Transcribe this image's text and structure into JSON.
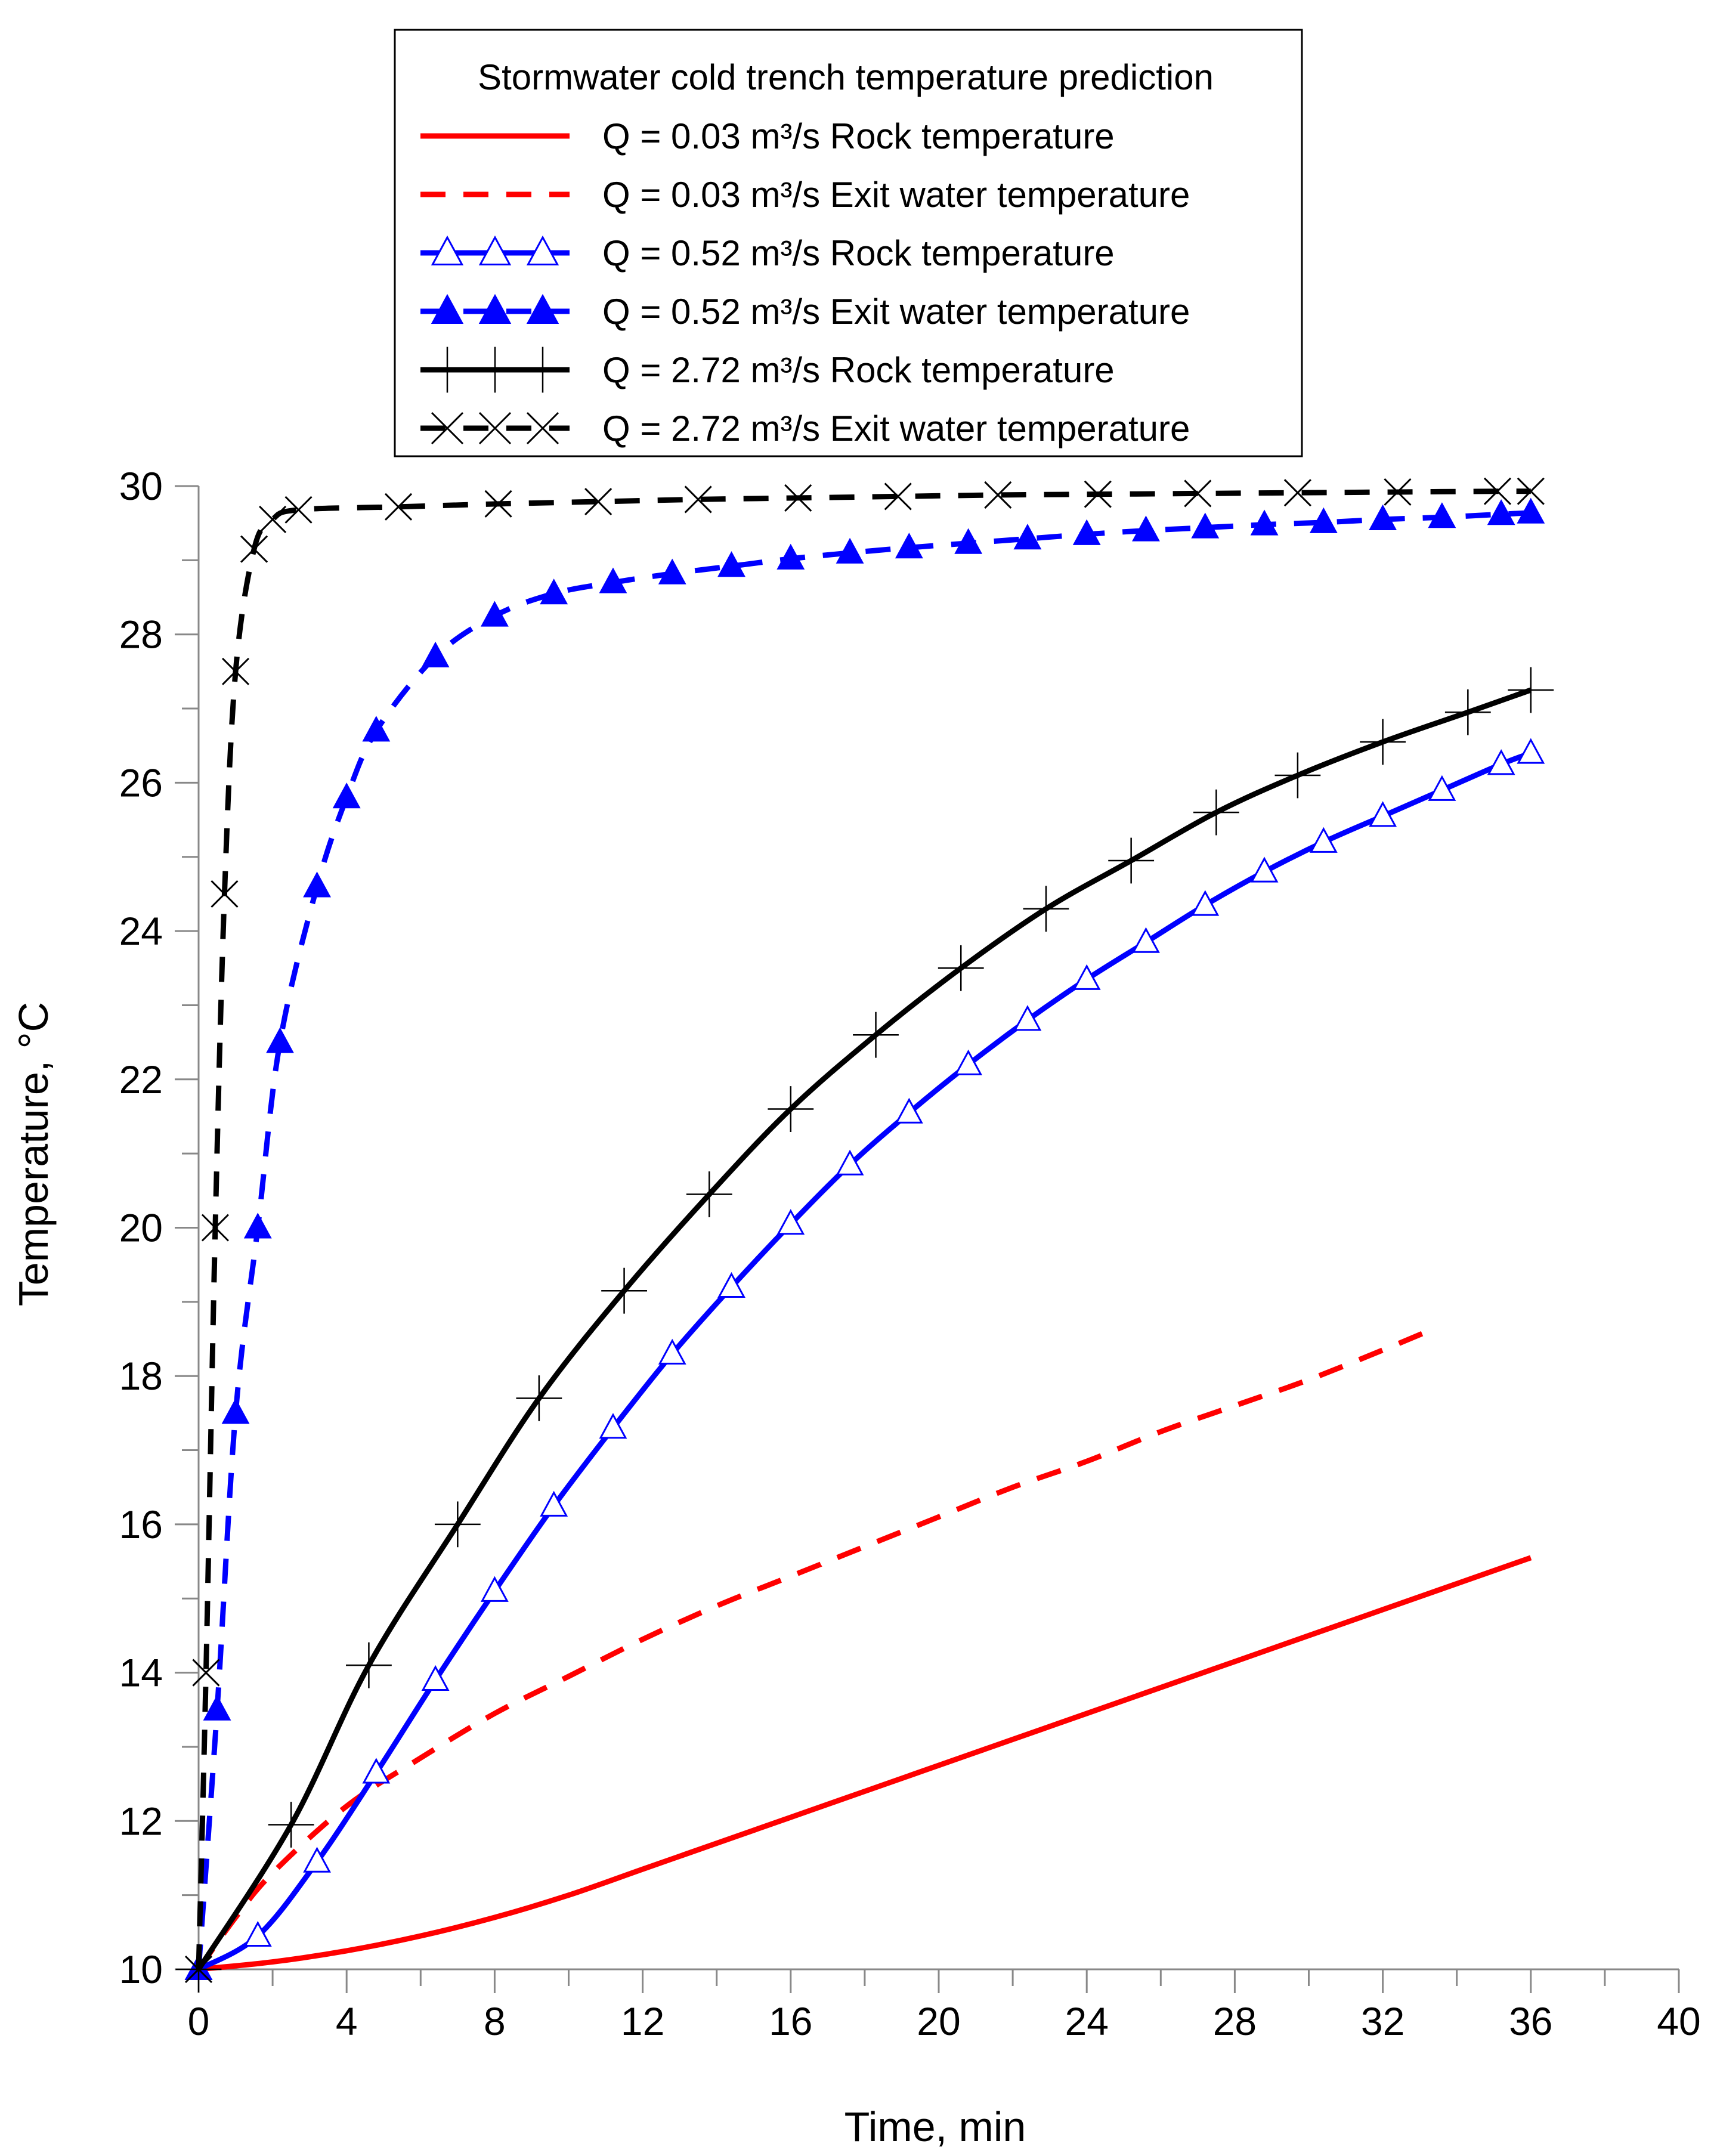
{
  "chart_data": {
    "type": "line",
    "title": "Stormwater cold trench temperature prediction",
    "xlabel": "Time, min",
    "ylabel": "Temperature, °C",
    "xlim": [
      0,
      40
    ],
    "ylim": [
      10,
      30
    ],
    "xticks": [
      "0",
      "4",
      "8",
      "12",
      "16",
      "20",
      "24",
      "28",
      "32",
      "36",
      "40"
    ],
    "yticks": [
      "10",
      "12",
      "14",
      "16",
      "18",
      "20",
      "22",
      "24",
      "26",
      "28",
      "30"
    ],
    "legend_position": "top",
    "series": [
      {
        "name": "Q = 0.03 m³/s Rock temperature",
        "color": "#ff0000",
        "dash": "solid",
        "marker": "none",
        "x": [
          0,
          2,
          4,
          6,
          8,
          10,
          12,
          14,
          16,
          18,
          20,
          22,
          24,
          26,
          28,
          30,
          32,
          34,
          36
        ],
        "y": [
          10.0,
          10.1,
          10.25,
          10.45,
          10.7,
          11.0,
          11.35,
          11.7,
          12.05,
          12.4,
          12.75,
          13.1,
          13.45,
          13.8,
          14.15,
          14.5,
          14.85,
          15.2,
          15.55
        ]
      },
      {
        "name": "Q = 0.03 m³/s Exit water temperature",
        "color": "#ff0000",
        "dash": "dashed",
        "marker": "none",
        "x": [
          0,
          1,
          2,
          4,
          6,
          8,
          10,
          12,
          14,
          16,
          18,
          20,
          22,
          24,
          26,
          28,
          30,
          32,
          33.2
        ],
        "y": [
          10.0,
          10.7,
          11.3,
          12.2,
          12.85,
          13.45,
          13.95,
          14.45,
          14.9,
          15.3,
          15.7,
          16.1,
          16.5,
          16.85,
          17.25,
          17.6,
          17.95,
          18.35,
          18.6
        ]
      },
      {
        "name": "Q = 0.52 m³/s Rock temperature",
        "color": "#0000ff",
        "dash": "solid",
        "marker": "triangle-open",
        "x": [
          0,
          1.6,
          3.2,
          4.8,
          6.4,
          8,
          9.6,
          11.2,
          12.8,
          14.4,
          16,
          17.6,
          19.2,
          20.8,
          22.4,
          24,
          25.6,
          27.2,
          28.8,
          30.4,
          32,
          33.6,
          35.2,
          36
        ],
        "y": [
          10.0,
          10.45,
          11.45,
          12.65,
          13.9,
          15.1,
          16.25,
          17.3,
          18.3,
          19.2,
          20.05,
          20.85,
          21.55,
          22.2,
          22.8,
          23.35,
          23.85,
          24.35,
          24.8,
          25.2,
          25.55,
          25.9,
          26.25,
          26.4
        ]
      },
      {
        "name": "Q = 0.52 m³/s Exit water temperature",
        "color": "#0000ff",
        "dash": "dashed",
        "marker": "triangle-filled",
        "x": [
          0,
          0.5,
          1,
          1.6,
          2.2,
          3.2,
          4,
          4.8,
          6.4,
          8,
          9.6,
          11.2,
          12.8,
          14.4,
          16,
          17.6,
          19.2,
          20.8,
          22.4,
          24,
          25.6,
          27.2,
          28.8,
          30.4,
          32,
          33.6,
          35.2,
          36
        ],
        "y": [
          10.0,
          13.5,
          17.5,
          20.0,
          22.5,
          24.6,
          25.8,
          26.7,
          27.7,
          28.25,
          28.55,
          28.7,
          28.82,
          28.92,
          29.02,
          29.1,
          29.17,
          29.23,
          29.29,
          29.35,
          29.4,
          29.44,
          29.48,
          29.51,
          29.55,
          29.58,
          29.62,
          29.64
        ]
      },
      {
        "name": "Q = 2.72 m³/s Rock temperature",
        "color": "#000000",
        "dash": "solid",
        "marker": "plus",
        "x": [
          0,
          2.5,
          4.6,
          7,
          9.2,
          11.5,
          13.8,
          16,
          18.3,
          20.6,
          22.9,
          25.2,
          27.5,
          29.7,
          32,
          34.3,
          36
        ],
        "y": [
          10.0,
          11.95,
          14.1,
          16.0,
          17.7,
          19.15,
          20.45,
          21.6,
          22.6,
          23.5,
          24.3,
          24.95,
          25.6,
          26.1,
          26.55,
          26.95,
          27.25
        ]
      },
      {
        "name": "Q = 2.72 m³/s Exit water temperature",
        "color": "#000000",
        "dash": "dashed",
        "marker": "x",
        "x": [
          0,
          0.2,
          0.45,
          0.7,
          1.0,
          1.5,
          2.0,
          2.7,
          5.4,
          8.1,
          10.8,
          13.5,
          16.2,
          18.9,
          21.6,
          24.3,
          27,
          29.7,
          32.4,
          35.1,
          36
        ],
        "y": [
          10.0,
          14.0,
          20.0,
          24.5,
          27.5,
          29.15,
          29.55,
          29.68,
          29.72,
          29.76,
          29.79,
          29.82,
          29.84,
          29.86,
          29.88,
          29.89,
          29.9,
          29.91,
          29.92,
          29.93,
          29.93
        ]
      }
    ]
  }
}
